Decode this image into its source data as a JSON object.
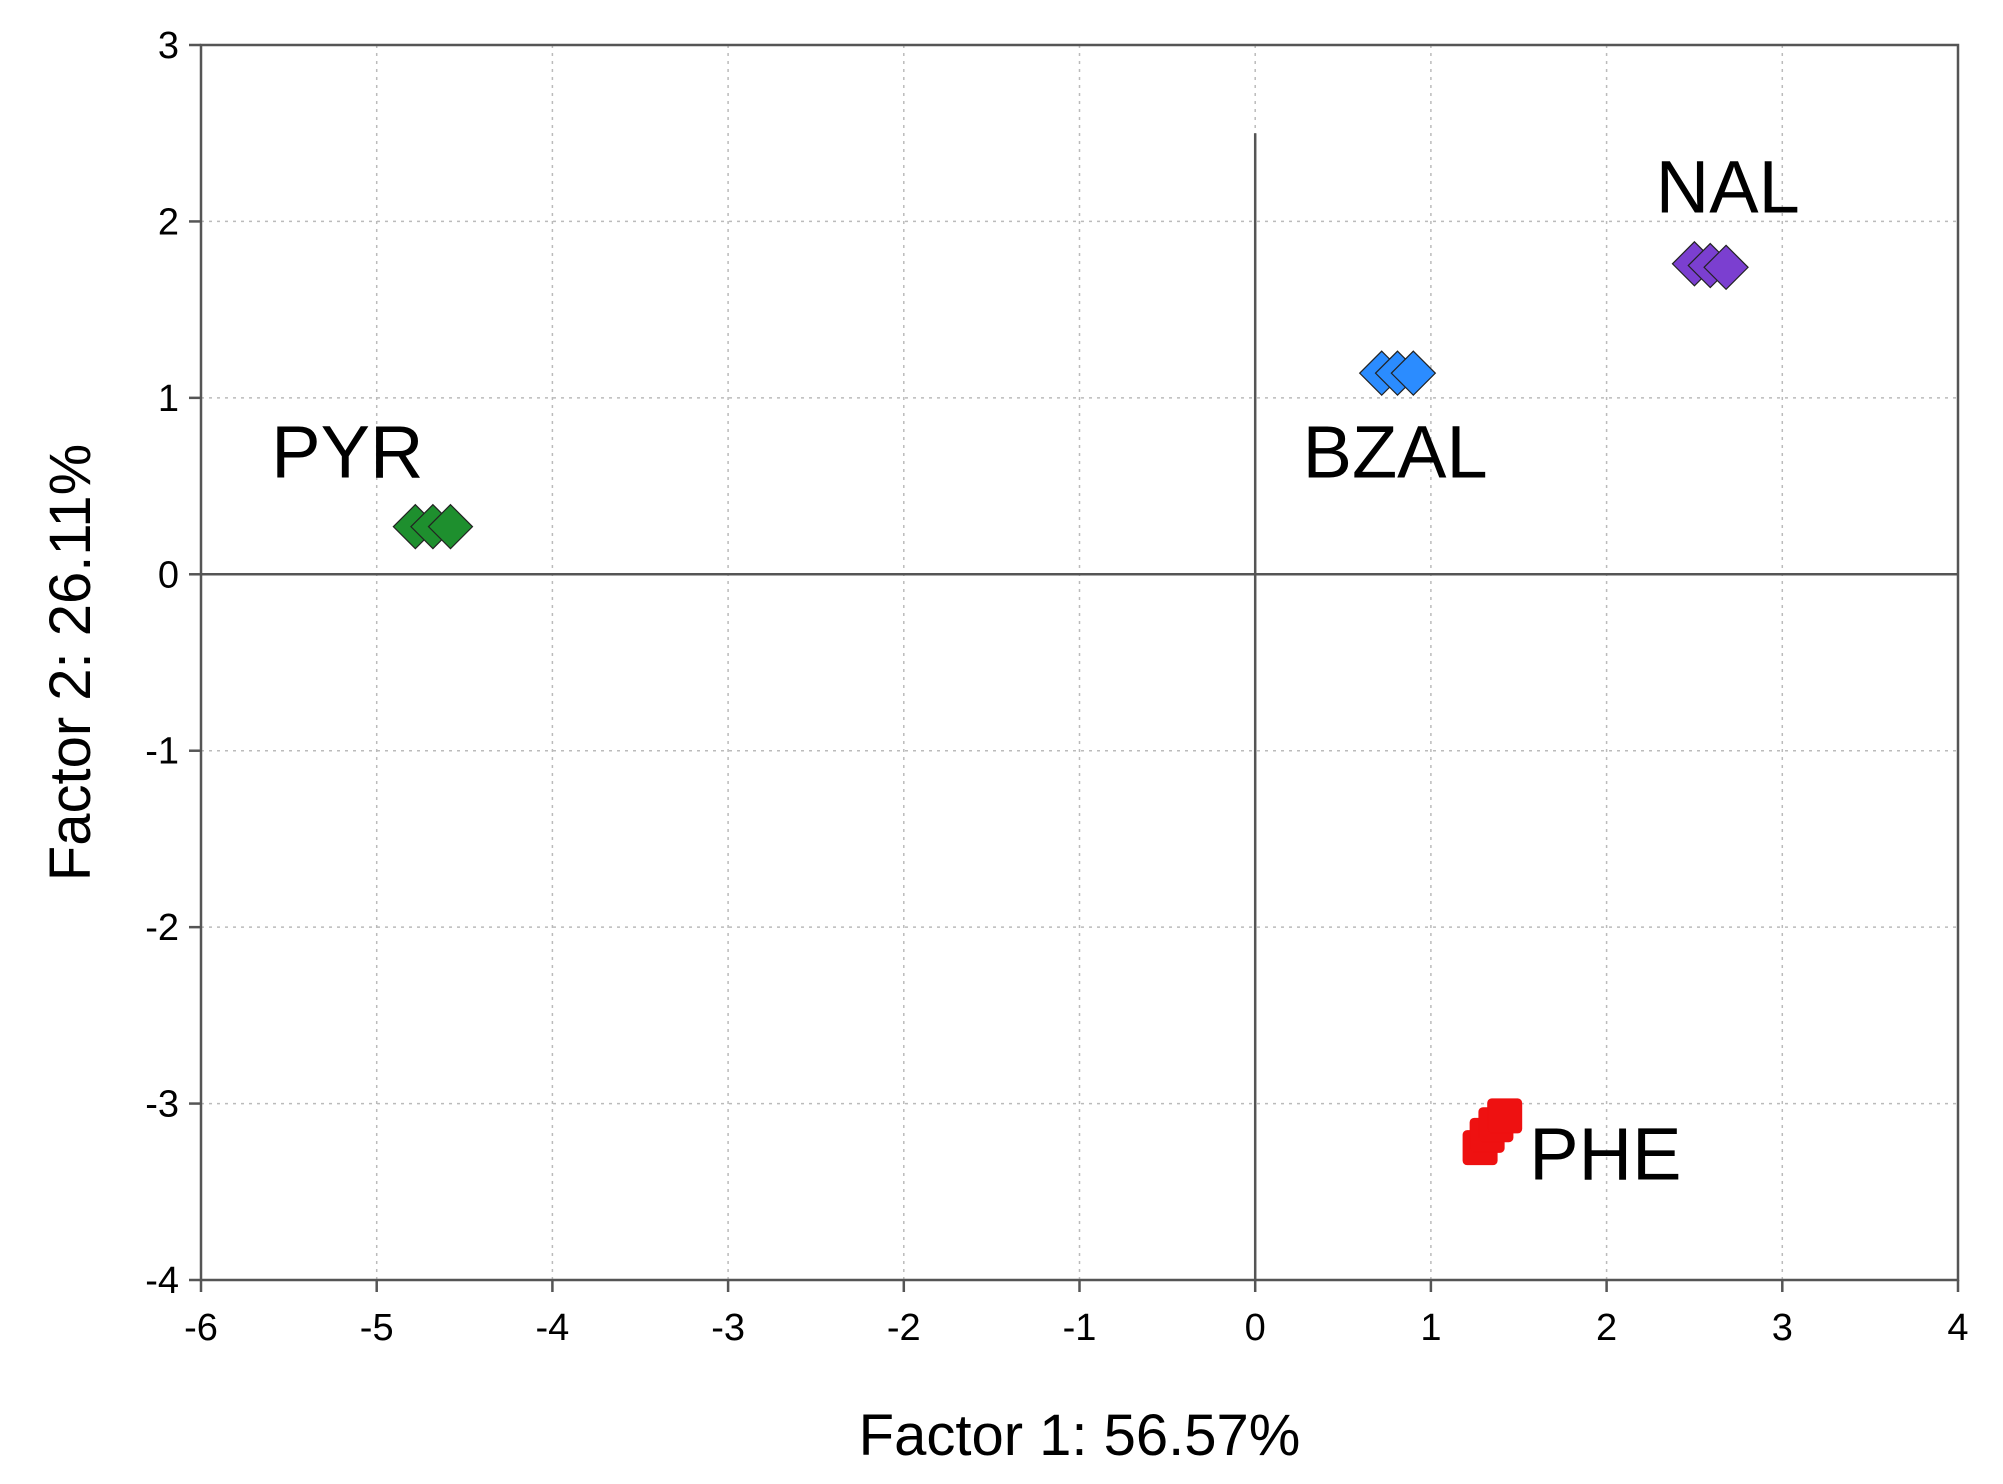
{
  "chart_data": {
    "type": "scatter",
    "title": "",
    "xlabel": "Factor 1: 56.57%",
    "ylabel": "Factor 2: 26.11%",
    "xlim": [
      -6,
      4
    ],
    "ylim": [
      -4,
      3
    ],
    "xticks": [
      -6,
      -5,
      -4,
      -3,
      -2,
      -1,
      0,
      1,
      2,
      3,
      4
    ],
    "yticks": [
      -4,
      -3,
      -2,
      -1,
      0,
      1,
      2,
      3
    ],
    "grid": true,
    "reference_lines": {
      "x": 0,
      "y": 0
    },
    "series": [
      {
        "name": "PYR",
        "color": "#1e8f2e",
        "marker": "diamond",
        "points": [
          [
            -4.78,
            0.27
          ],
          [
            -4.68,
            0.27
          ],
          [
            -4.58,
            0.27
          ]
        ]
      },
      {
        "name": "BZAL",
        "color": "#2b8cff",
        "marker": "diamond",
        "points": [
          [
            0.72,
            1.14
          ],
          [
            0.81,
            1.14
          ],
          [
            0.9,
            1.14
          ]
        ]
      },
      {
        "name": "NAL",
        "color": "#7b3fd0",
        "marker": "diamond",
        "points": [
          [
            2.5,
            1.76
          ],
          [
            2.59,
            1.75
          ],
          [
            2.68,
            1.74
          ]
        ]
      },
      {
        "name": "PHE",
        "color": "#ee1111",
        "marker": "square",
        "points": [
          [
            1.28,
            -3.25
          ],
          [
            1.32,
            -3.18
          ],
          [
            1.37,
            -3.12
          ],
          [
            1.42,
            -3.07
          ]
        ]
      }
    ]
  }
}
